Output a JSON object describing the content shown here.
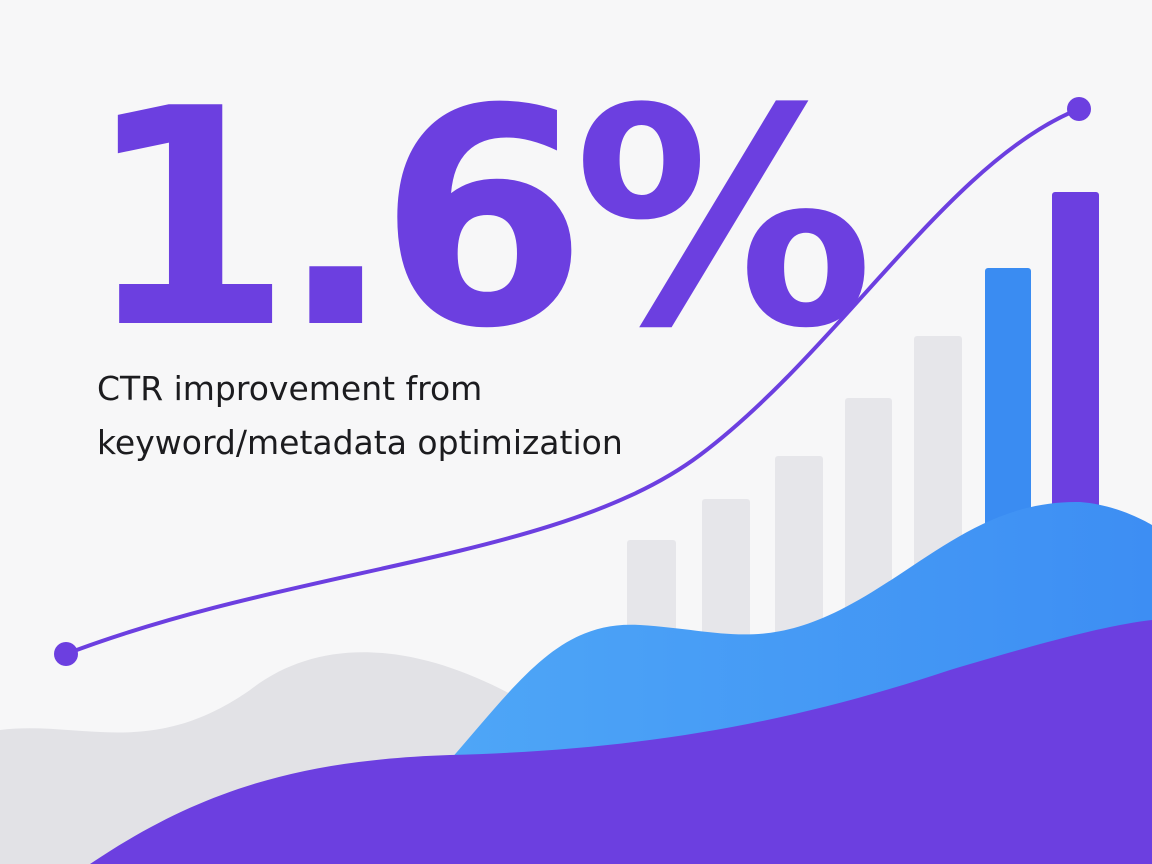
{
  "headline": {
    "value": "1.6%"
  },
  "caption": {
    "lines": [
      "CTR improvement from",
      "keyword/metadata optimization"
    ]
  }
}
